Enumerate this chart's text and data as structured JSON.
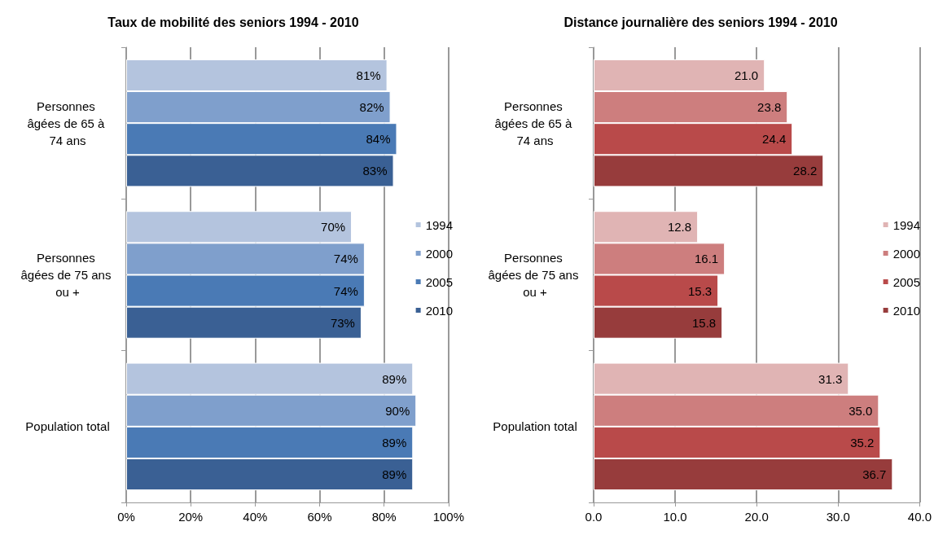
{
  "chart_data": [
    {
      "type": "bar",
      "orientation": "horizontal",
      "title": "Taux de mobilité des seniors 1994 - 2010",
      "categories": [
        "Personnes âgées de 65 à 74 ans",
        "Personnes âgées de 75 ans ou +",
        "Population total"
      ],
      "series": [
        {
          "name": "1994",
          "color": "#b4c4de",
          "values": [
            81,
            70,
            89
          ],
          "value_labels": [
            "81%",
            "70%",
            "89%"
          ]
        },
        {
          "name": "2000",
          "color": "#7f9fcc",
          "values": [
            82,
            74,
            90
          ],
          "value_labels": [
            "82%",
            "74%",
            "90%"
          ]
        },
        {
          "name": "2005",
          "color": "#4a7ab5",
          "values": [
            84,
            74,
            89
          ],
          "value_labels": [
            "84%",
            "74%",
            "89%"
          ]
        },
        {
          "name": "2010",
          "color": "#3a6094",
          "values": [
            83,
            73,
            89
          ],
          "value_labels": [
            "83%",
            "73%",
            "89%"
          ]
        }
      ],
      "xlim": [
        0,
        100
      ],
      "xticks": [
        {
          "value": 0,
          "label": "0%"
        },
        {
          "value": 20,
          "label": "20%"
        },
        {
          "value": 40,
          "label": "40%"
        },
        {
          "value": 60,
          "label": "60%"
        },
        {
          "value": 80,
          "label": "80%"
        },
        {
          "value": 100,
          "label": "100%"
        }
      ],
      "grid": "x",
      "legend": "right"
    },
    {
      "type": "bar",
      "orientation": "horizontal",
      "title": "Distance journalière des seniors 1994 - 2010",
      "categories": [
        "Personnes âgées de 65 à 74 ans",
        "Personnes âgées de 75 ans ou +",
        "Population total"
      ],
      "series": [
        {
          "name": "1994",
          "color": "#e0b4b4",
          "values": [
            21.0,
            12.8,
            31.3
          ],
          "value_labels": [
            "21.0",
            "12.8",
            "31.3"
          ]
        },
        {
          "name": "2000",
          "color": "#cd7e7e",
          "values": [
            23.8,
            16.1,
            35.0
          ],
          "value_labels": [
            "23.8",
            "16.1",
            "35.0"
          ]
        },
        {
          "name": "2005",
          "color": "#b94a4a",
          "values": [
            24.4,
            15.3,
            35.2
          ],
          "value_labels": [
            "24.4",
            "15.3",
            "35.2"
          ]
        },
        {
          "name": "2010",
          "color": "#973c3c",
          "values": [
            28.2,
            15.8,
            36.7
          ],
          "value_labels": [
            "28.2",
            "15.8",
            "36.7"
          ]
        }
      ],
      "xlim": [
        0,
        40
      ],
      "xticks": [
        {
          "value": 0,
          "label": "0.0"
        },
        {
          "value": 10,
          "label": "10.0"
        },
        {
          "value": 20,
          "label": "20.0"
        },
        {
          "value": 30,
          "label": "30.0"
        },
        {
          "value": 40,
          "label": "40.0"
        }
      ],
      "grid": "x",
      "legend": "right"
    }
  ]
}
